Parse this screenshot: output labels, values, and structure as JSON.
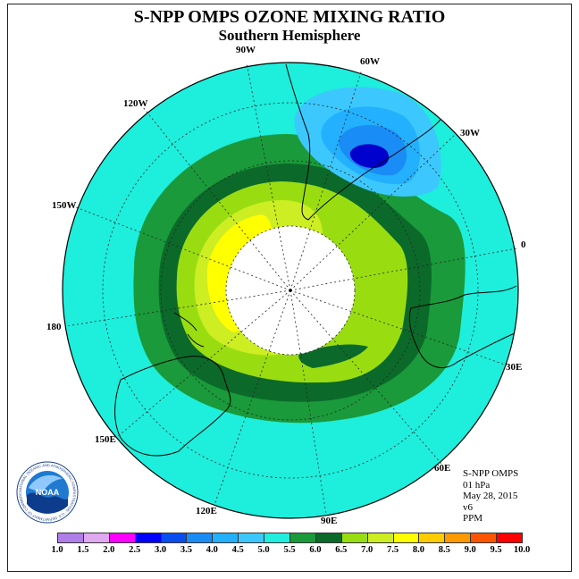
{
  "header": {
    "title": "S-NPP OMPS OZONE MIXING RATIO",
    "subtitle": "Southern Hemisphere"
  },
  "map": {
    "longitude_labels": [
      "90W",
      "60W",
      "30W",
      "0",
      "30E",
      "60E",
      "90E",
      "120E",
      "150E",
      "180",
      "150W",
      "120W"
    ],
    "ocean_color": "#1eeedc",
    "land_outline_color": "#000000"
  },
  "info": {
    "product": "S-NPP OMPS",
    "level": "01 hPa",
    "date": "May 28, 2015",
    "version": "v6",
    "units": "PPM"
  },
  "logo": {
    "text": "NOAA",
    "ring_text": "NATIONAL OCEANIC AND ATMOSPHERIC ADMINISTRATION · U.S. DEPARTMENT OF COMMERCE"
  },
  "color_scale": {
    "ticks": [
      "1.0",
      "1.5",
      "2.0",
      "2.5",
      "3.0",
      "3.5",
      "4.0",
      "4.5",
      "5.0",
      "5.5",
      "6.0",
      "6.5",
      "7.0",
      "7.5",
      "8.0",
      "8.5",
      "9.0",
      "9.5",
      "10.0"
    ],
    "colors": [
      "#b07ee8",
      "#e0a8f0",
      "#ff00ff",
      "#0000ff",
      "#0a4ef0",
      "#1a8cf5",
      "#22b0ff",
      "#3cc8ff",
      "#22eedd",
      "#1a9a3a",
      "#0b6a2a",
      "#99dd11",
      "#ccee22",
      "#ffff00",
      "#ffcc00",
      "#ff9900",
      "#ff5500",
      "#ff0000",
      "#8b5a3a"
    ]
  }
}
